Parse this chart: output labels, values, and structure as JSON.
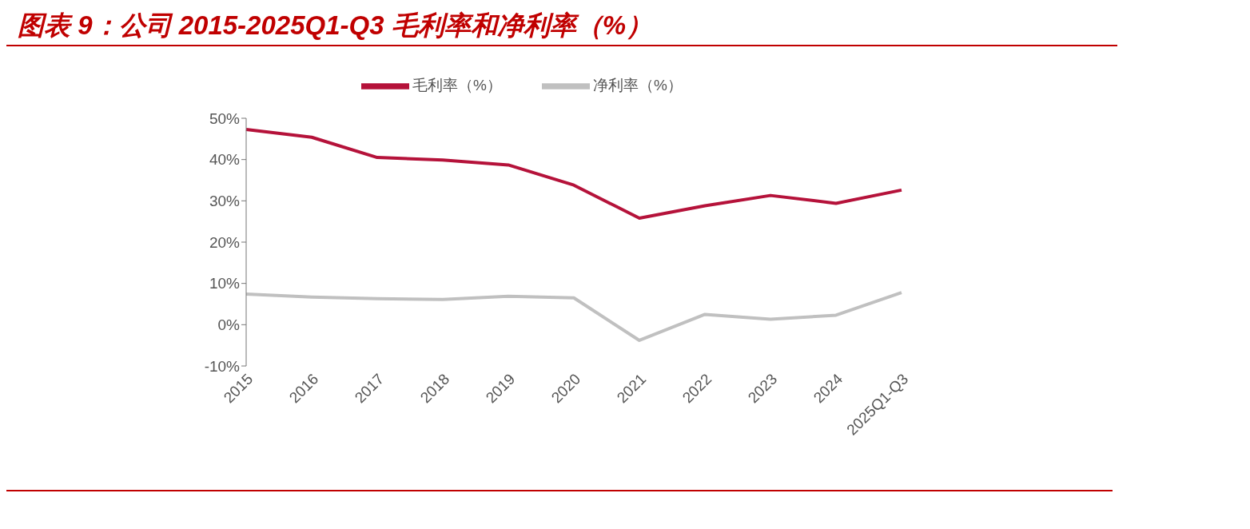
{
  "chart_data": {
    "type": "line",
    "title": "图表 9：公司 2015-2025Q1-Q3 毛利率和净利率（%）",
    "categories": [
      "2015",
      "2016",
      "2017",
      "2018",
      "2019",
      "2020",
      "2021",
      "2022",
      "2023",
      "2024",
      "2025Q1-Q3"
    ],
    "series": [
      {
        "name": "毛利率（%）",
        "color": "#b5123a",
        "values": [
          47.3,
          45.4,
          40.5,
          39.9,
          38.7,
          33.8,
          25.8,
          28.8,
          31.3,
          29.4,
          32.6
        ]
      },
      {
        "name": "净利率（%）",
        "color": "#c0c0c0",
        "values": [
          7.4,
          6.7,
          6.3,
          6.1,
          6.9,
          6.5,
          -3.8,
          2.5,
          1.3,
          2.3,
          7.8
        ]
      }
    ],
    "ylim": [
      -10,
      50
    ],
    "yticks": [
      {
        "value": -10,
        "label": "-10%"
      },
      {
        "value": 0,
        "label": "0%"
      },
      {
        "value": 10,
        "label": "10%"
      },
      {
        "value": 20,
        "label": "20%"
      },
      {
        "value": 30,
        "label": "30%"
      },
      {
        "value": 40,
        "label": "40%"
      },
      {
        "value": 50,
        "label": "50%"
      }
    ],
    "grid": false,
    "legend": "top",
    "marker": "none",
    "line_style": "solid"
  }
}
